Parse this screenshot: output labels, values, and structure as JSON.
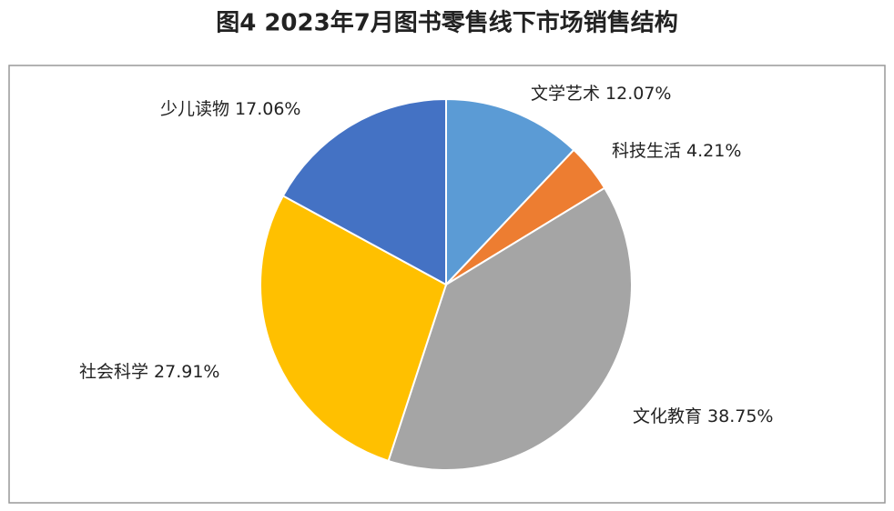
{
  "chart_data": {
    "type": "pie",
    "title": "图4 2023年7月图书零售线下市场销售结构",
    "categories": [
      "文学艺术",
      "科技生活",
      "文化教育",
      "社会科学",
      "少儿读物"
    ],
    "values": [
      12.07,
      4.21,
      38.75,
      27.91,
      17.06
    ],
    "value_labels": [
      "12.07%",
      "4.21%",
      "38.75%",
      "27.91%",
      "17.06%"
    ],
    "colors": [
      "#5b9bd5",
      "#ed7d31",
      "#a5a5a5",
      "#ffc000",
      "#4472c4"
    ]
  }
}
